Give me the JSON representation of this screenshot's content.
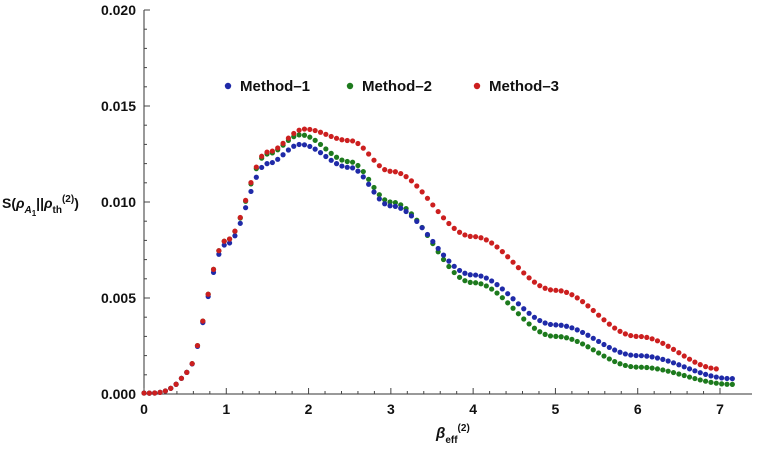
{
  "chart_data": {
    "type": "scatter",
    "title": "",
    "xlabel": "β_eff^(2)",
    "ylabel": "S(ρ_A1||ρ_th^(2))",
    "xlim": [
      0,
      7.25
    ],
    "ylim": [
      0,
      0.02
    ],
    "xticks": [
      0,
      1,
      2,
      3,
      4,
      5,
      6,
      7
    ],
    "xtick_labels": [
      "0",
      "1",
      "2",
      "3",
      "4",
      "5",
      "6",
      "7"
    ],
    "yticks": [
      0,
      0.005,
      0.01,
      0.015,
      0.02
    ],
    "ytick_labels": [
      "0.000",
      "0.005",
      "0.010",
      "0.015",
      "0.020"
    ],
    "legend_position": "top-center",
    "series": [
      {
        "name": "Method–1",
        "color": "#1f2aa8",
        "x_start": 0.0,
        "x_end": 7.15,
        "step": 0.065,
        "peak_x": 1.9,
        "peak_y": 0.013,
        "sample_points": [
          [
            0.5,
            0.0011
          ],
          [
            1.0,
            0.0078
          ],
          [
            1.5,
            0.012
          ],
          [
            1.9,
            0.013
          ],
          [
            2.5,
            0.0118
          ],
          [
            3.0,
            0.0098
          ],
          [
            4.0,
            0.0062
          ],
          [
            5.0,
            0.0036
          ],
          [
            6.0,
            0.002
          ],
          [
            7.15,
            0.0008
          ]
        ]
      },
      {
        "name": "Method–2",
        "color": "#1d7a1d",
        "x_start": 0.0,
        "x_end": 7.15,
        "step": 0.065,
        "peak_x": 1.9,
        "peak_y": 0.0135,
        "sample_points": [
          [
            0.5,
            0.0011
          ],
          [
            1.0,
            0.008
          ],
          [
            1.5,
            0.0125
          ],
          [
            1.9,
            0.0135
          ],
          [
            2.5,
            0.0121
          ],
          [
            3.0,
            0.01
          ],
          [
            4.0,
            0.0058
          ],
          [
            5.0,
            0.003
          ],
          [
            6.0,
            0.0014
          ],
          [
            7.15,
            0.0005
          ]
        ]
      },
      {
        "name": "Method–3",
        "color": "#cc1f1f",
        "x_start": 0.0,
        "x_end": 7.0,
        "step": 0.065,
        "peak_x": 1.95,
        "peak_y": 0.0138,
        "sample_points": [
          [
            0.5,
            0.0011
          ],
          [
            1.0,
            0.008
          ],
          [
            1.5,
            0.0126
          ],
          [
            1.95,
            0.0138
          ],
          [
            2.5,
            0.0132
          ],
          [
            3.0,
            0.0116
          ],
          [
            4.0,
            0.0082
          ],
          [
            5.0,
            0.0054
          ],
          [
            6.0,
            0.003
          ],
          [
            7.0,
            0.0013
          ]
        ]
      }
    ]
  }
}
